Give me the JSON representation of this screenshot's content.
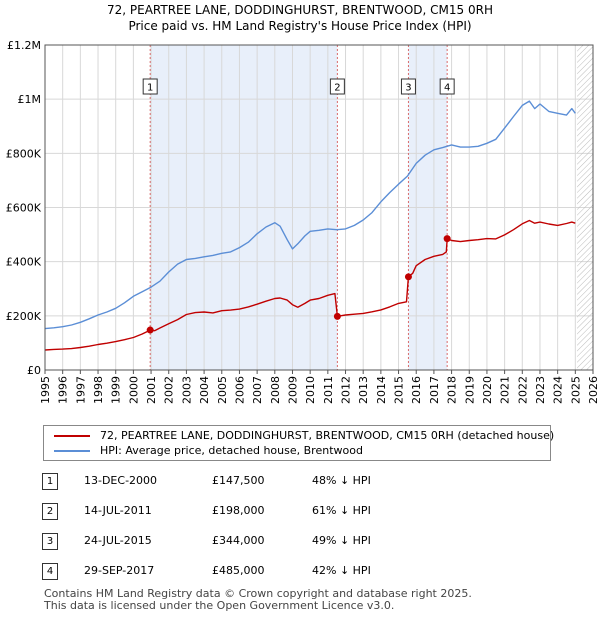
{
  "header": {
    "title_line1": "72, PEARTREE LANE, DODDINGHURST, BRENTWOOD, CM15 0RH",
    "title_line2": "Price paid vs. HM Land Registry's House Price Index (HPI)"
  },
  "colors": {
    "property_series": "#c00000",
    "hpi_series": "#5b8ed6",
    "shade": "#e8effa",
    "grid": "#d8d8d8"
  },
  "chart_data": {
    "type": "line",
    "title": "Price paid vs. HM Land Registry's House Price Index (HPI)",
    "xlim": [
      1995,
      2026
    ],
    "ylim": [
      0,
      1200000
    ],
    "y_ticks": [
      {
        "value": 0,
        "label": "£0"
      },
      {
        "value": 200000,
        "label": "£200K"
      },
      {
        "value": 400000,
        "label": "£400K"
      },
      {
        "value": 600000,
        "label": "£600K"
      },
      {
        "value": 800000,
        "label": "£800K"
      },
      {
        "value": 1000000,
        "label": "£1M"
      },
      {
        "value": 1200000,
        "label": "£1.2M"
      }
    ],
    "x_ticks": [
      "1995",
      "1996",
      "1997",
      "1998",
      "1999",
      "2000",
      "2001",
      "2002",
      "2003",
      "2004",
      "2005",
      "2006",
      "2007",
      "2008",
      "2009",
      "2010",
      "2011",
      "2012",
      "2013",
      "2014",
      "2015",
      "2016",
      "2017",
      "2018",
      "2019",
      "2020",
      "2021",
      "2022",
      "2023",
      "2024",
      "2025",
      "2026"
    ],
    "future_hatch_from": 2025.1,
    "shaded_regions": [
      [
        2000.95,
        2011.54
      ],
      [
        2015.56,
        2017.75
      ]
    ],
    "series": [
      {
        "name": "72, PEARTREE LANE, DODDINGHURST, BRENTWOOD, CM15 0RH (detached house)",
        "color": "#c00000",
        "x": [
          1995.0,
          1995.5,
          1996.0,
          1996.5,
          1997.0,
          1997.5,
          1998.0,
          1998.5,
          1999.0,
          1999.5,
          2000.0,
          2000.5,
          2000.95,
          2001.2,
          2001.5,
          2002.0,
          2002.5,
          2003.0,
          2003.5,
          2004.0,
          2004.5,
          2005.0,
          2005.5,
          2006.0,
          2006.5,
          2007.0,
          2007.5,
          2008.0,
          2008.3,
          2008.7,
          2009.0,
          2009.3,
          2009.7,
          2010.0,
          2010.5,
          2011.0,
          2011.4,
          2011.54,
          2011.8,
          2012.0,
          2012.5,
          2013.0,
          2013.5,
          2014.0,
          2014.5,
          2015.0,
          2015.45,
          2015.56,
          2015.8,
          2016.0,
          2016.5,
          2017.0,
          2017.5,
          2017.7,
          2017.75,
          2018.0,
          2018.5,
          2019.0,
          2019.5,
          2020.0,
          2020.5,
          2021.0,
          2021.5,
          2022.0,
          2022.4,
          2022.7,
          2023.0,
          2023.5,
          2024.0,
          2024.5,
          2024.8,
          2025.0
        ],
        "values": [
          74000,
          76000,
          77000,
          79000,
          83000,
          88000,
          94000,
          99000,
          105000,
          112000,
          120000,
          133000,
          147500,
          145000,
          155000,
          171000,
          186000,
          205000,
          212000,
          214000,
          211000,
          219000,
          221000,
          225000,
          233000,
          243000,
          254000,
          264000,
          266000,
          258000,
          241000,
          232000,
          246000,
          258000,
          264000,
          276000,
          282000,
          198000,
          201000,
          203000,
          206000,
          209000,
          215000,
          222000,
          233000,
          246000,
          252000,
          344000,
          357000,
          385000,
          408000,
          420000,
          427000,
          436000,
          485000,
          478000,
          474000,
          478000,
          481000,
          485000,
          484000,
          499000,
          518000,
          540000,
          552000,
          542000,
          546000,
          539000,
          534000,
          541000,
          546000,
          542000
        ]
      },
      {
        "name": "HPI: Average price, detached house, Brentwood",
        "color": "#5b8ed6",
        "x": [
          1995.0,
          1995.5,
          1996.0,
          1996.5,
          1997.0,
          1997.5,
          1998.0,
          1998.5,
          1999.0,
          1999.5,
          2000.0,
          2000.5,
          2001.0,
          2001.5,
          2002.0,
          2002.5,
          2003.0,
          2003.5,
          2004.0,
          2004.5,
          2005.0,
          2005.5,
          2006.0,
          2006.5,
          2007.0,
          2007.5,
          2008.0,
          2008.3,
          2008.7,
          2009.0,
          2009.3,
          2009.7,
          2010.0,
          2010.5,
          2011.0,
          2011.5,
          2012.0,
          2012.5,
          2013.0,
          2013.5,
          2014.0,
          2014.5,
          2015.0,
          2015.5,
          2016.0,
          2016.5,
          2017.0,
          2017.5,
          2018.0,
          2018.5,
          2019.0,
          2019.5,
          2020.0,
          2020.5,
          2021.0,
          2021.5,
          2022.0,
          2022.4,
          2022.7,
          2023.0,
          2023.5,
          2024.0,
          2024.5,
          2024.8,
          2025.0
        ],
        "values": [
          153000,
          156000,
          160000,
          166000,
          176000,
          189000,
          203000,
          214000,
          228000,
          248000,
          272000,
          289000,
          306000,
          328000,
          362000,
          391000,
          408000,
          412000,
          418000,
          423000,
          431000,
          436000,
          452000,
          472000,
          503000,
          528000,
          544000,
          531000,
          481000,
          447000,
          466000,
          495000,
          512000,
          516000,
          521000,
          518000,
          521000,
          534000,
          554000,
          581000,
          621000,
          655000,
          686000,
          716000,
          763000,
          793000,
          813000,
          821000,
          831000,
          823000,
          823000,
          826000,
          837000,
          852000,
          893000,
          936000,
          977000,
          993000,
          965000,
          982000,
          955000,
          948000,
          941000,
          965000,
          948000
        ]
      }
    ],
    "sales": [
      {
        "marker": "1",
        "x": 2000.95,
        "value": 147500,
        "date": "13-DEC-2000",
        "price": "£147,500",
        "hpi": "48% ↓ HPI"
      },
      {
        "marker": "2",
        "x": 2011.54,
        "value": 198000,
        "date": "14-JUL-2011",
        "price": "£198,000",
        "hpi": "61% ↓ HPI"
      },
      {
        "marker": "3",
        "x": 2015.56,
        "value": 344000,
        "date": "24-JUL-2015",
        "price": "£344,000",
        "hpi": "49% ↓ HPI"
      },
      {
        "marker": "4",
        "x": 2017.75,
        "value": 485000,
        "date": "29-SEP-2017",
        "price": "£485,000",
        "hpi": "42% ↓ HPI"
      }
    ]
  },
  "legend": {
    "property_label": "72, PEARTREE LANE, DODDINGHURST, BRENTWOOD, CM15 0RH (detached house)",
    "hpi_label": "HPI: Average price, detached house, Brentwood"
  },
  "footer": {
    "line1": "Contains HM Land Registry data © Crown copyright and database right 2025.",
    "line2": "This data is licensed under the Open Government Licence v3.0."
  }
}
